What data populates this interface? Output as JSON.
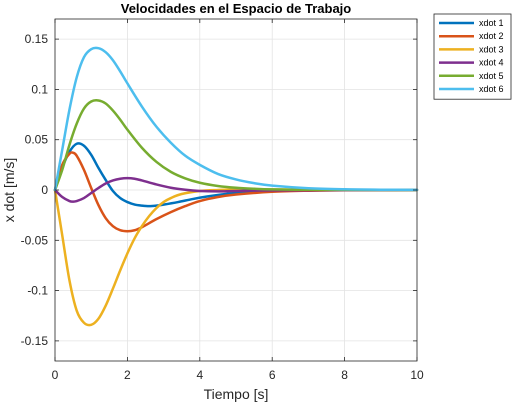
{
  "chart_data": {
    "type": "line",
    "title": "Velocidades en el Espacio de Trabajo",
    "xlabel": "Tiempo [s]",
    "ylabel": "x dot [m/s]",
    "xlim": [
      0,
      10
    ],
    "ylim": [
      -0.17,
      0.17
    ],
    "xticks": [
      "0",
      "2",
      "4",
      "6",
      "8",
      "10"
    ],
    "yticks": [
      "-0.15",
      "-0.1",
      "-0.05",
      "0",
      "0.05",
      "0.1",
      "0.15"
    ],
    "grid": true,
    "legend_position": "outside-top-right",
    "series": [
      {
        "name": "xdot 1",
        "color": "#0072BD",
        "x": [
          0,
          0.2,
          0.4,
          0.6,
          0.8,
          1.0,
          1.2,
          1.4,
          1.6,
          1.8,
          2.0,
          2.2,
          2.4,
          2.6,
          2.8,
          3.0,
          3.4,
          3.8,
          4.2,
          4.6,
          5.0,
          6.0,
          7.0,
          8.0,
          10.0
        ],
        "y": [
          0,
          0.022,
          0.038,
          0.046,
          0.044,
          0.035,
          0.022,
          0.01,
          -0.001,
          -0.008,
          -0.012,
          -0.0145,
          -0.0155,
          -0.016,
          -0.0155,
          -0.0145,
          -0.012,
          -0.009,
          -0.0065,
          -0.0045,
          -0.003,
          -0.0012,
          -0.0004,
          -0.0001,
          0
        ]
      },
      {
        "name": "xdot 2",
        "color": "#D95319",
        "x": [
          0,
          0.2,
          0.4,
          0.5,
          0.6,
          0.8,
          1.0,
          1.2,
          1.4,
          1.6,
          1.8,
          2.0,
          2.2,
          2.4,
          2.8,
          3.2,
          3.6,
          4.0,
          4.5,
          5.0,
          6.0,
          7.0,
          8.0,
          10.0
        ],
        "y": [
          0,
          0.025,
          0.036,
          0.037,
          0.034,
          0.02,
          0.002,
          -0.015,
          -0.028,
          -0.036,
          -0.04,
          -0.041,
          -0.04,
          -0.037,
          -0.029,
          -0.022,
          -0.016,
          -0.011,
          -0.007,
          -0.0045,
          -0.0018,
          -0.0007,
          -0.0002,
          0
        ]
      },
      {
        "name": "xdot 3",
        "color": "#EDB120",
        "x": [
          0,
          0.2,
          0.4,
          0.6,
          0.8,
          1.0,
          1.2,
          1.4,
          1.6,
          1.8,
          2.0,
          2.2,
          2.4,
          2.6,
          2.8,
          3.0,
          3.2,
          3.5,
          4.0,
          4.5,
          5.0,
          6.0,
          7.0,
          10.0
        ],
        "y": [
          0,
          -0.045,
          -0.09,
          -0.12,
          -0.132,
          -0.134,
          -0.128,
          -0.115,
          -0.098,
          -0.08,
          -0.063,
          -0.048,
          -0.036,
          -0.026,
          -0.018,
          -0.012,
          -0.008,
          -0.004,
          -0.001,
          0,
          0.0005,
          0.0005,
          0.0003,
          0
        ]
      },
      {
        "name": "xdot 4",
        "color": "#7E2F8E",
        "x": [
          0,
          0.2,
          0.4,
          0.5,
          0.6,
          0.8,
          1.0,
          1.2,
          1.4,
          1.6,
          1.8,
          2.0,
          2.2,
          2.4,
          2.8,
          3.2,
          3.6,
          4.0,
          4.5,
          5.0,
          6.0,
          10.0
        ],
        "y": [
          0,
          -0.007,
          -0.011,
          -0.0115,
          -0.011,
          -0.008,
          -0.003,
          0.002,
          0.0065,
          0.0095,
          0.0112,
          0.0118,
          0.0112,
          0.0095,
          0.0055,
          0.0022,
          0.0002,
          -0.001,
          -0.0014,
          -0.001,
          -0.0004,
          0
        ]
      },
      {
        "name": "xdot 5",
        "color": "#77AC30",
        "x": [
          0,
          0.2,
          0.4,
          0.6,
          0.8,
          1.0,
          1.2,
          1.4,
          1.6,
          1.8,
          2.0,
          2.4,
          2.8,
          3.2,
          3.6,
          4.0,
          4.5,
          5.0,
          5.5,
          6.0,
          7.0,
          8.0,
          10.0
        ],
        "y": [
          0,
          0.02,
          0.045,
          0.066,
          0.081,
          0.088,
          0.089,
          0.086,
          0.079,
          0.07,
          0.06,
          0.042,
          0.028,
          0.018,
          0.0115,
          0.0072,
          0.004,
          0.0022,
          0.0012,
          0.0006,
          0.0002,
          0.0001,
          0
        ]
      },
      {
        "name": "xdot 6",
        "color": "#4DBEEE",
        "x": [
          0,
          0.2,
          0.4,
          0.6,
          0.8,
          1.0,
          1.2,
          1.4,
          1.6,
          1.8,
          2.0,
          2.4,
          2.8,
          3.2,
          3.6,
          4.0,
          4.5,
          5.0,
          5.5,
          6.0,
          7.0,
          8.0,
          9.0,
          10.0
        ],
        "y": [
          0,
          0.04,
          0.08,
          0.112,
          0.132,
          0.14,
          0.141,
          0.137,
          0.129,
          0.118,
          0.106,
          0.083,
          0.063,
          0.047,
          0.034,
          0.025,
          0.016,
          0.0105,
          0.0068,
          0.0044,
          0.0018,
          0.0007,
          0.0003,
          0.0001
        ]
      }
    ]
  }
}
